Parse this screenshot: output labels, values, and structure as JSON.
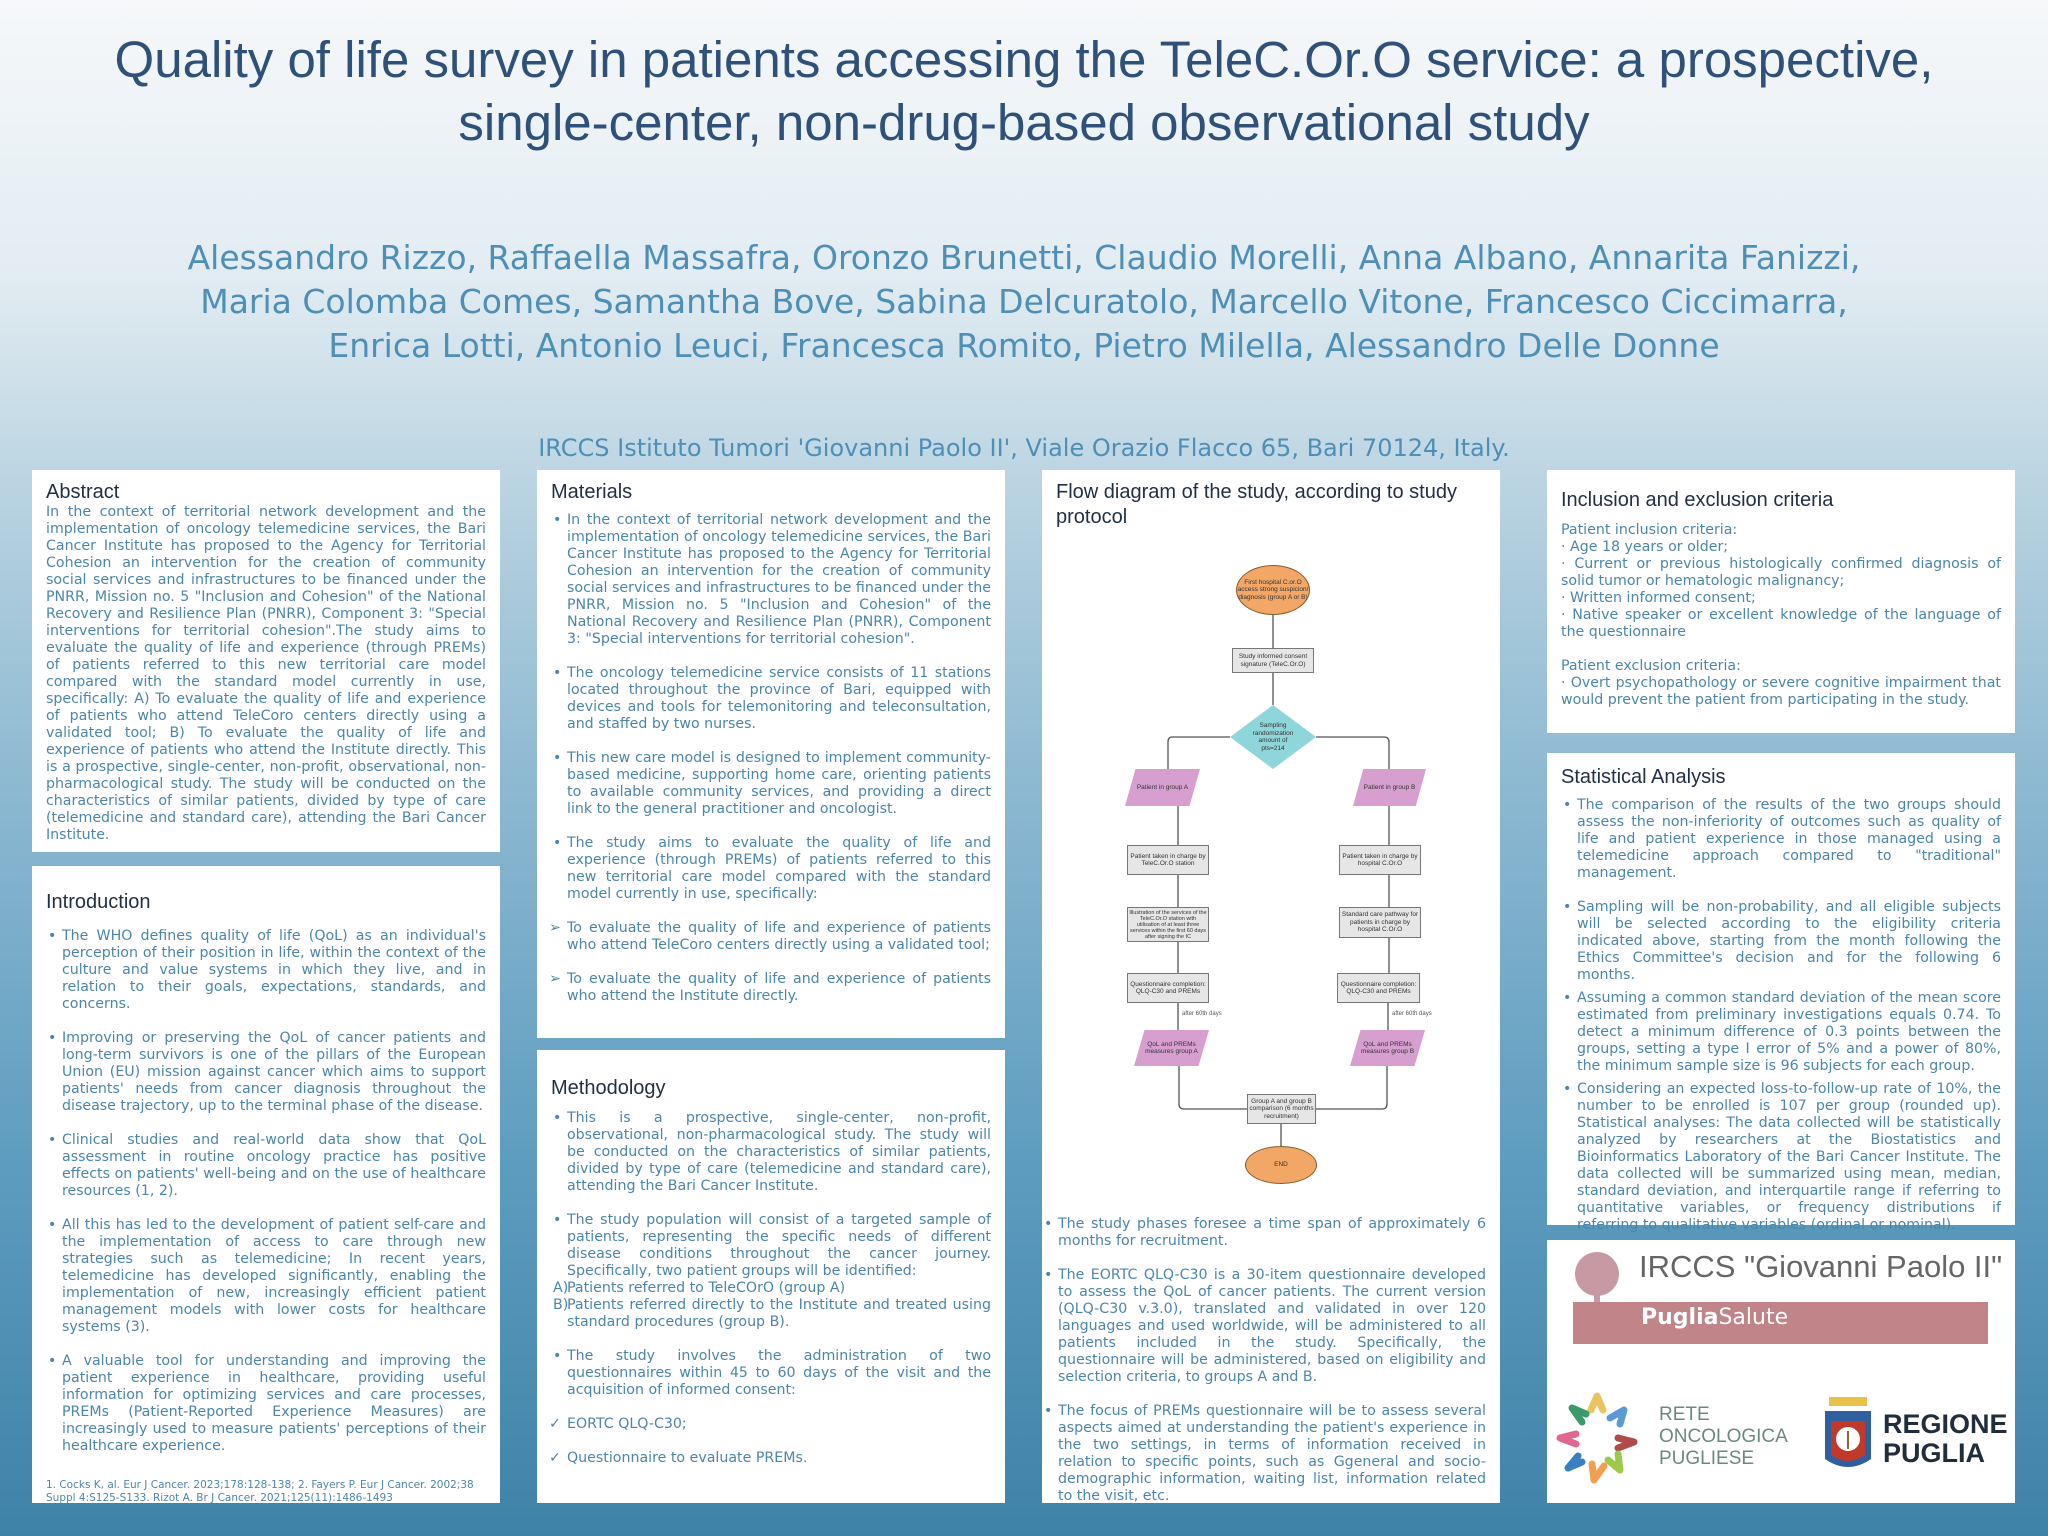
{
  "title": "Quality of life survey in patients accessing the TeleC.Or.O service: a prospective, single-center, non-drug-based observational study",
  "authors": "Alessandro Rizzo, Raffaella Massafra, Oronzo Brunetti, Claudio Morelli, Anna Albano, Annarita Fanizzi, Maria Colomba Comes,  Samantha Bove, Sabina Delcuratolo, Marcello Vitone, Francesco Ciccimarra, Enrica Lotti, Antonio Leuci, Francesca Romito, Pietro Milella, Alessandro Delle Donne",
  "affiliation": "IRCCS Istituto Tumori 'Giovanni Paolo II', Viale Orazio Flacco 65, Bari 70124, Italy.",
  "colors": {
    "title": "#2e5079",
    "accent": "#4d8fb6",
    "background_bottom": "#3f82a8"
  },
  "abstract": {
    "heading": "Abstract",
    "text": "In the context of territorial network development and the implementation of oncology telemedicine services, the Bari Cancer Institute has proposed to the Agency for Territorial Cohesion an intervention for the creation of community social services and infrastructures to be financed under the PNRR, Mission no. 5 \"Inclusion and Cohesion\" of the National Recovery and Resilience Plan (PNRR), Component 3: \"Special interventions for territorial cohesion\".The study aims to evaluate the quality of life and experience (through PREMs) of patients referred to this new territorial care model compared with the standard model currently in use, specifically: A) To evaluate the quality of life and experience of patients who attend TeleCoro centers directly using a validated tool; B) To evaluate the quality of life and experience of patients who attend the Institute directly. This is a prospective, single-center, non-profit, observational, non-pharmacological study. The study will be conducted on the characteristics of similar patients, divided by type of care (telemedicine and standard care), attending the Bari Cancer Institute."
  },
  "introduction": {
    "heading": "Introduction",
    "bullets": [
      "The WHO defines quality of life (QoL) as an individual's perception of their position in life, within the context of the culture and value systems in which they live, and in relation to their goals, expectations, standards, and concerns.",
      "Improving or preserving the QoL of cancer patients and long-term survivors is one of the pillars of the European Union (EU) mission against cancer  which aims to support patients' needs from cancer diagnosis throughout the disease trajectory, up to the terminal phase of the disease.",
      "Clinical studies and real-world data show that QoL assessment in routine oncology practice has positive effects on patients' well-being and on the use of healthcare resources (1, 2).",
      "All this has led to the development of patient self-care and the implementation of access to care through new strategies such as telemedicine; In recent years, telemedicine has developed significantly, enabling the implementation of new, increasingly efficient patient management models with lower costs for healthcare systems (3).",
      "A valuable tool for understanding and improving the patient experience in healthcare, providing useful information for optimizing services and care processes, PREMs (Patient-Reported Experience Measures) are increasingly used to measure patients' perceptions of their healthcare experience."
    ],
    "references": "1. Cocks K, al. Eur J Cancer. 2023;178:128-138; 2. Fayers P. Eur J Cancer. 2002;38 Suppl 4:S125-S133. Rizot A. Br J Cancer. 2021;125(11):1486-1493"
  },
  "materials": {
    "heading": "Materials",
    "bullets": [
      "In the context of territorial network development and the implementation of oncology telemedicine services, the Bari Cancer Institute has proposed to the Agency for Territorial Cohesion an intervention for the creation of community social services and infrastructures to be financed under the PNRR, Mission no. 5 \"Inclusion and Cohesion\" of the National Recovery and Resilience Plan (PNRR), Component 3: \"Special interventions for territorial cohesion\".",
      "The oncology telemedicine service consists of 11 stations located throughout the province of Bari, equipped with devices and tools for telemonitoring and teleconsultation, and staffed by two nurses.",
      "This new care model is designed to implement community-based medicine, supporting home care, orienting patients to available community services, and providing a direct link to the general practitioner and oncologist.",
      "The study aims to evaluate the quality of life and experience (through PREMs) of patients referred to this new territorial care model compared with the standard model currently in use, specifically:"
    ],
    "arrows": [
      "To evaluate the quality of life and experience of patients who attend TeleCoro centers directly using a validated tool;",
      "To evaluate the quality of life and experience of patients who attend the Institute directly."
    ]
  },
  "methodology": {
    "heading": "Methodology",
    "bullets": [
      "This is a prospective, single-center, non-profit, observational, non-pharmacological study. The study will be conducted on the characteristics of similar patients, divided by type of care (telemedicine and standard care), attending the Bari Cancer Institute.",
      "The study population will consist of a targeted sample of patients, representing the specific needs of different disease conditions throughout the cancer journey. Specifically, two patient groups will be identified:",
      "The study involves the administration of two questionnaires within 45 to 60 days of the visit and the acquisition of informed consent:"
    ],
    "groups": [
      {
        "letter": "A)",
        "text": "Patients referred to TeleCOrO (group A)"
      },
      {
        "letter": "B)",
        "text": "Patients referred directly to the Institute and treated using standard procedures (group B)."
      }
    ],
    "checks": [
      "EORTC QLQ-C30;",
      "Questionnaire to evaluate PREMs."
    ]
  },
  "flow": {
    "heading": "Flow diagram of the study, according to study protocol",
    "nodes": {
      "start": "First hospital C.or.O access strong suspicion/ diagnosis (group A or B)",
      "consent": "Study informed consent signature (TeleC.Or.O)",
      "sampling": "Sampling randomization amount of pts=214",
      "groupA": "Patient in group A",
      "groupB": "Patient in group B",
      "chargeA": "Patient taken in charge by TeleC.Or.O station",
      "chargeB": "Patient taken in charge by hospital C.Or.O",
      "illustrationA": "Illustration of the services of the TeleC.Or.O station with utilisation of at least three services within the first 60 days after signing the IC",
      "standardB": "Standard care pathway for patients in charge by hospital C.Or.O",
      "questA": "Questionnaire completion: QLQ-C30 and PREMs",
      "questB": "Questionnaire completion: QLQ-C30 and PREMs",
      "afterA": "after 60th days",
      "afterB": "after 60th days",
      "qolA": "QoL and PREMs measures group A",
      "qolB": "QoL and PREMs measures group B",
      "compare": "Group A and group B comparison (6 months recruitment)",
      "end": "END"
    },
    "bullets": [
      "The study phases foresee a time span of approximately 6 months for recruitment.",
      "The EORTC QLQ-C30 is a 30-item questionnaire developed to assess the QoL of cancer patients. The current version (QLQ-C30 v.3.0), translated and validated in over 120 languages and used worldwide, will be administered to all patients included in the study. Specifically, the questionnaire will be administered, based on eligibility and selection criteria, to groups A and B.",
      "The focus of PREMs questionnaire will be to assess several aspects aimed at understanding the patient's experience in the two settings, in terms of information received in relation to specific points, such as Ggeneral and socio-demographic information, waiting list, information related to the visit, etc."
    ]
  },
  "criteria": {
    "heading": "Inclusion and exclusion criteria",
    "inclusion_title": "Patient inclusion criteria:",
    "inclusion": [
      "· Age 18 years or older;",
      "· Current or previous histologically confirmed diagnosis of solid tumor or hematologic malignancy;",
      "· Written informed consent;",
      "· Native speaker or excellent knowledge of the language of the questionnaire"
    ],
    "exclusion_title": "Patient exclusion criteria:",
    "exclusion": [
      "· Overt psychopathology or severe cognitive impairment that would prevent the patient from participating in the study."
    ]
  },
  "statistics": {
    "heading": "Statistical Analysis",
    "bullets": [
      "The comparison of the results of the two groups should assess the non-inferiority of outcomes such as quality of life and patient experience in those managed using a telemedicine approach compared to \"traditional\" management.",
      "Sampling will be non-probability, and all eligible subjects will be selected according to the eligibility criteria indicated above, starting from the month following the Ethics Committee's decision and for the following 6 months.",
      "Assuming a common standard deviation of the mean score estimated from preliminary investigations equals 0.74. To detect a minimum difference of 0.3 points between the groups, setting a type I error of 5% and a power of 80%, the minimum sample size is 96 subjects for each group.",
      "Considering an expected loss-to-follow-up rate of 10%, the number to be enrolled is 107 per group (rounded up). Statistical analyses: The data collected will be statistically analyzed by researchers at the Biostatistics and Bioinformatics Laboratory of the Bari Cancer Institute. The data collected will be summarized using mean, median, standard deviation, and interquartile range if referring to quantitative variables, or frequency distributions if referring to qualitative variables (ordinal or nominal)."
    ]
  },
  "logos": {
    "irccs": "IRCCS \"Giovanni Paolo II\"",
    "puglia_bold": "Puglia",
    "puglia_rest": "Salute",
    "rete": [
      "RETE",
      "ONCOLOGICA",
      "PUGLIESE"
    ],
    "regione": [
      "REGIONE",
      "PUGLIA"
    ]
  }
}
